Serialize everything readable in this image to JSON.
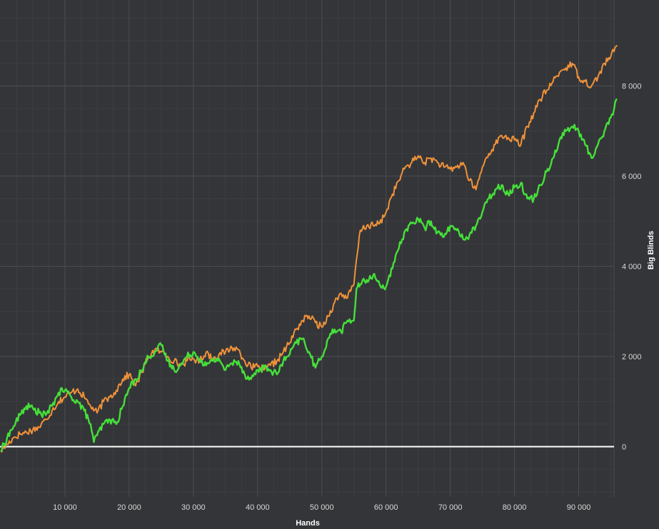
{
  "chart_data": {
    "type": "line",
    "xlabel": "Hands",
    "ylabel": "Big Blinds",
    "xlim": [
      0,
      96000
    ],
    "ylim": [
      -1100,
      9800
    ],
    "x_ticks": [
      {
        "value": 10000,
        "label": "10 000"
      },
      {
        "value": 20000,
        "label": "20 000"
      },
      {
        "value": 30000,
        "label": "30 000"
      },
      {
        "value": 40000,
        "label": "40 000"
      },
      {
        "value": 50000,
        "label": "50 000"
      },
      {
        "value": 60000,
        "label": "60 000"
      },
      {
        "value": 70000,
        "label": "70 000"
      },
      {
        "value": 80000,
        "label": "80 000"
      },
      {
        "value": 90000,
        "label": "90 000"
      }
    ],
    "y_ticks": [
      {
        "value": 0,
        "label": "0"
      },
      {
        "value": 2000,
        "label": "2 000"
      },
      {
        "value": 4000,
        "label": "4 000"
      },
      {
        "value": 6000,
        "label": "6 000"
      },
      {
        "value": 8000,
        "label": "8 000"
      }
    ],
    "y_axis_side": "right",
    "grid": true,
    "zero_line": true,
    "colors": {
      "background": "#343538",
      "grid_major": "#4c4d51",
      "grid_minor": "#3d3e42",
      "zero_line": "#ffffff",
      "series_orange": "#f0923a",
      "series_green": "#45e03a"
    },
    "series": [
      {
        "color": "#f0923a",
        "x": [
          0,
          1000,
          2000,
          3000,
          4000,
          5000,
          6000,
          7000,
          8000,
          9000,
          10000,
          11000,
          12000,
          13000,
          14000,
          15000,
          16000,
          17000,
          18000,
          19000,
          20000,
          21000,
          22000,
          23000,
          24000,
          25000,
          26000,
          27000,
          28000,
          29000,
          30000,
          31000,
          32000,
          33000,
          34000,
          35000,
          36000,
          37000,
          38000,
          39000,
          40000,
          41000,
          42000,
          43000,
          44000,
          45000,
          46000,
          47000,
          48000,
          49000,
          50000,
          51000,
          52000,
          53000,
          54000,
          55000,
          55200,
          56000,
          57000,
          58000,
          59000,
          60000,
          61000,
          62000,
          63000,
          64000,
          65000,
          66000,
          67000,
          68000,
          69000,
          70000,
          71000,
          72000,
          73000,
          74000,
          75000,
          76000,
          77000,
          78000,
          79000,
          80000,
          81000,
          82000,
          83000,
          84000,
          85000,
          86000,
          87000,
          88000,
          89000,
          90000,
          91000,
          92000,
          93000,
          94000,
          95000,
          96000
        ],
        "y": [
          -100,
          50,
          200,
          280,
          320,
          380,
          430,
          600,
          800,
          1000,
          1100,
          1200,
          1280,
          1100,
          900,
          750,
          1000,
          1100,
          1250,
          1500,
          1600,
          1350,
          1650,
          2000,
          2150,
          2100,
          2000,
          1900,
          1800,
          1900,
          1950,
          1900,
          2100,
          1950,
          2050,
          2100,
          2200,
          2150,
          1900,
          1750,
          1780,
          1700,
          1800,
          1900,
          2100,
          2300,
          2600,
          2800,
          2900,
          2750,
          2650,
          2900,
          3200,
          3400,
          3300,
          3600,
          3900,
          4800,
          4900,
          4900,
          4950,
          5200,
          5600,
          5900,
          6200,
          6300,
          6450,
          6300,
          6400,
          6300,
          6200,
          6150,
          6200,
          6300,
          5900,
          5700,
          6200,
          6500,
          6700,
          6900,
          6850,
          6800,
          6700,
          7100,
          7400,
          7700,
          7900,
          8100,
          8300,
          8400,
          8500,
          8200,
          8100,
          8000,
          8200,
          8500,
          8650,
          8900
        ]
      },
      {
        "color": "#45e03a",
        "x": [
          0,
          1000,
          2000,
          3000,
          4000,
          5000,
          6000,
          7000,
          8000,
          9000,
          10000,
          11000,
          12000,
          13000,
          14000,
          14500,
          15000,
          16000,
          17000,
          18000,
          19000,
          20000,
          21000,
          22000,
          23000,
          24000,
          25000,
          26000,
          27000,
          28000,
          29000,
          30000,
          31000,
          32000,
          33000,
          34000,
          35000,
          36000,
          37000,
          38000,
          39000,
          40000,
          41000,
          42000,
          43000,
          44000,
          45000,
          46000,
          47000,
          48000,
          49000,
          50000,
          51000,
          52000,
          53000,
          54000,
          55000,
          55400,
          56000,
          57000,
          58000,
          59000,
          60000,
          61000,
          62000,
          63000,
          64000,
          65000,
          66000,
          67000,
          68000,
          69000,
          70000,
          71000,
          72000,
          73000,
          74000,
          75000,
          76000,
          77000,
          78000,
          79000,
          80000,
          81000,
          82000,
          83000,
          84000,
          85000,
          86000,
          87000,
          88000,
          89000,
          90000,
          91000,
          92000,
          93000,
          94000,
          95000,
          96000
        ],
        "y": [
          -100,
          200,
          450,
          700,
          900,
          850,
          750,
          700,
          900,
          1200,
          1250,
          1100,
          1000,
          800,
          500,
          100,
          250,
          500,
          600,
          500,
          900,
          1300,
          1500,
          1700,
          2000,
          2100,
          2250,
          1900,
          1700,
          1800,
          2000,
          2100,
          1950,
          1800,
          1900,
          1950,
          1700,
          1850,
          1900,
          1600,
          1500,
          1700,
          1750,
          1700,
          1600,
          1900,
          2050,
          2300,
          2400,
          2100,
          1750,
          2000,
          2400,
          2600,
          2550,
          2800,
          2800,
          3500,
          3600,
          3700,
          3800,
          3600,
          3550,
          3950,
          4400,
          4800,
          4950,
          5050,
          4850,
          5000,
          4750,
          4650,
          4900,
          4800,
          4600,
          4700,
          4900,
          5200,
          5500,
          5700,
          5800,
          5600,
          5750,
          5850,
          5500,
          5500,
          5800,
          6100,
          6400,
          6800,
          7000,
          7100,
          7000,
          6700,
          6400,
          6700,
          7000,
          7300,
          7700
        ]
      }
    ]
  }
}
